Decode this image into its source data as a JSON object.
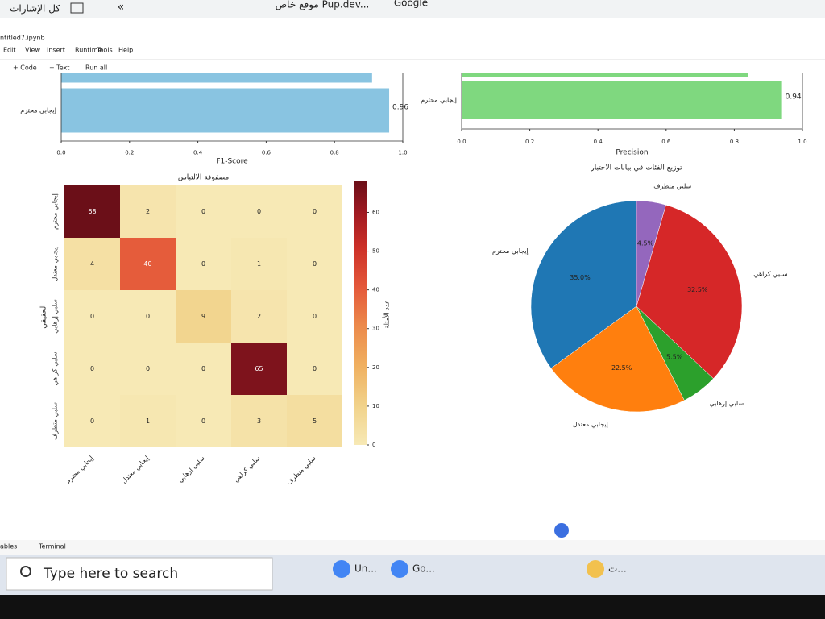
{
  "browser": {
    "bookmarks": "كل الإشارات",
    "tab_site": "موقع خاص Pup.dev...",
    "tab_google": "Google"
  },
  "notebook": {
    "filename": "ntitled7.ipynb",
    "menu": [
      "Edit",
      "View",
      "Insert",
      "Runtime",
      "Tools",
      "Help"
    ],
    "toolbar": [
      "+ Code",
      "+ Text",
      "Run all"
    ]
  },
  "chart_data": [
    {
      "type": "hbar",
      "categories": [
        null,
        "إيجابي محترم"
      ],
      "values": [
        0.91,
        0.96
      ],
      "value_labels": [
        null,
        "0.96"
      ],
      "color": "#89c4e1",
      "xlim": [
        0,
        1
      ],
      "xticks": [
        {
          "value": 0,
          "label": "0.0"
        },
        0.2,
        0.4,
        0.6,
        0.8,
        {
          "value": 1,
          "label": "1.0"
        }
      ],
      "xlabel": "F1-Score"
    },
    {
      "type": "hbar",
      "categories": [
        null,
        "إيجابي محترم"
      ],
      "values": [
        0.84,
        0.94
      ],
      "value_labels": [
        null,
        "0.94"
      ],
      "color": "#7fd87f",
      "xlim": [
        0,
        1
      ],
      "xticks": [
        {
          "value": 0,
          "label": "0.0"
        },
        0.2,
        0.4,
        0.6,
        0.8,
        {
          "value": 1,
          "label": "1.0"
        }
      ],
      "xlabel": "Precision"
    },
    {
      "type": "heatmap",
      "title": "مصفوفة الالتباس",
      "ylabel": "الحقيقي",
      "x_categories": [
        "إيجابي محترم",
        "إيجابي معتدل",
        "سلبي إرهابي",
        "سلبي كراهي",
        "سلبي متطرف"
      ],
      "y_categories": [
        "إيجابي محترم",
        "إيجابي معتدل",
        "سلبي إرهابي",
        "سلبي كراهي",
        "سلبي متطرف"
      ],
      "values": [
        [
          68,
          2,
          0,
          0,
          0
        ],
        [
          4,
          40,
          0,
          1,
          0
        ],
        [
          0,
          0,
          9,
          2,
          0
        ],
        [
          0,
          0,
          0,
          65,
          0
        ],
        [
          0,
          1,
          0,
          3,
          5
        ]
      ],
      "colorbar": {
        "label": "عدد الأمثلة",
        "lim": [
          0,
          68
        ],
        "ticks": [
          0,
          10,
          20,
          30,
          40,
          50,
          60
        ]
      }
    },
    {
      "type": "pie",
      "title": "توزيع الفئات في بيانات الاختبار",
      "categories": [
        "إيجابي محترم",
        "إيجابي معتدل",
        "سلبي إرهابي",
        "سلبي كراهي",
        "سلبي متطرف"
      ],
      "values": [
        35.0,
        22.5,
        5.5,
        32.5,
        4.5
      ],
      "value_labels": [
        "35.0%",
        "22.5%",
        "5.5%",
        "32.5%",
        "4.5%"
      ],
      "colors": [
        "#1f77b4",
        "#ff7f0e",
        "#2ca02c",
        "#d62728",
        "#9467bd"
      ]
    }
  ],
  "status": {
    "tabs": [
      "ables",
      "Terminal"
    ]
  },
  "taskbar": {
    "search": "Type here to search",
    "apps": [
      "Un...",
      "Go...",
      "ت..."
    ]
  }
}
